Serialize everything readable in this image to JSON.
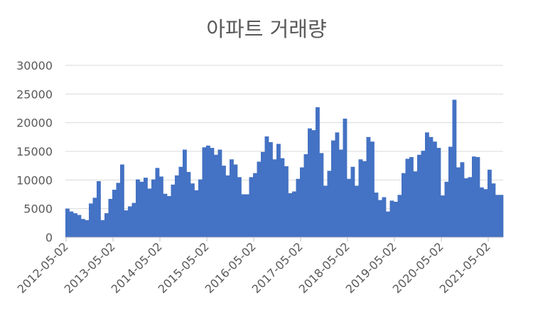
{
  "chart_data": {
    "type": "bar",
    "title": "아파트 거래량",
    "xlabel": "",
    "ylabel": "",
    "ylim": [
      0,
      30000
    ],
    "yticks": [
      0,
      5000,
      10000,
      15000,
      20000,
      25000,
      30000
    ],
    "ytick_labels": [
      "0",
      "5000",
      "10000",
      "15000",
      "20000",
      "25000",
      "30000"
    ],
    "xtick_labels": [
      "2012-05-02",
      "2013-05-02",
      "2014-05-02",
      "2015-05-02",
      "2016-05-02",
      "2017-05-02",
      "2018-05-02",
      "2019-05-02",
      "2020-05-02",
      "2021-05-02"
    ],
    "grid": true,
    "legend": "none",
    "bar_color": "#4472C4",
    "series": [
      {
        "values": [
          5000,
          4500,
          4200,
          3900,
          3200,
          3000,
          5900,
          6900,
          9800,
          3000,
          4200,
          6700,
          8300,
          9500,
          12700,
          4700,
          5400,
          6000,
          10100,
          9700,
          10400,
          8500,
          10100,
          12100,
          10600,
          7600,
          7200,
          9200,
          10800,
          12300,
          15300,
          11400,
          9400,
          8200,
          10100,
          15700,
          16000,
          15600,
          14400,
          15300,
          12500,
          10800,
          13600,
          12700,
          10500,
          7500,
          7500,
          10500,
          11200,
          13200,
          14900,
          17600,
          16600,
          13600,
          16300,
          13800,
          12400,
          7700,
          8000,
          10200,
          12200,
          14500,
          19000,
          18700,
          22700,
          14700,
          9000,
          11600,
          16900,
          18300,
          15300,
          20700,
          10200,
          12300,
          9000,
          13600,
          13300,
          17500,
          16700,
          7800,
          6500,
          7000,
          4500,
          6400,
          6200,
          7400,
          11200,
          13700,
          14000,
          11500,
          14400,
          15100,
          18300,
          17500,
          16700,
          15600,
          7300,
          9700,
          15800,
          24000,
          12200,
          13100,
          10300,
          10500,
          14100,
          14000,
          8700,
          8400,
          11800,
          9400,
          7400,
          7400
        ]
      }
    ]
  }
}
